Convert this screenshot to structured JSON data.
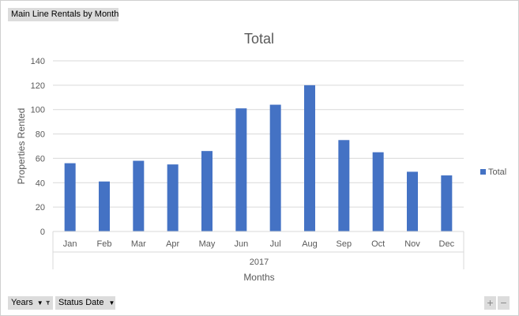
{
  "toolbar": {
    "report_title": "Main Line Rentals by Month",
    "years_field": "Years",
    "status_date_field": "Status Date",
    "zoom_in": "+",
    "zoom_out": "−"
  },
  "colors": {
    "bar": "#4472C4",
    "grid": "#d9d9d9"
  },
  "chart_data": {
    "type": "bar",
    "title": "Total",
    "xlabel": "Months",
    "ylabel": "Properties Rented",
    "group_label": "2017",
    "categories": [
      "Jan",
      "Feb",
      "Mar",
      "Apr",
      "May",
      "Jun",
      "Jul",
      "Aug",
      "Sep",
      "Oct",
      "Nov",
      "Dec"
    ],
    "series": [
      {
        "name": "Total",
        "values": [
          56,
          41,
          58,
          55,
          66,
          101,
          104,
          120,
          75,
          65,
          49,
          46
        ]
      }
    ],
    "ylim": [
      0,
      140
    ],
    "yticks": [
      0,
      20,
      40,
      60,
      80,
      100,
      120,
      140
    ],
    "grid": true,
    "legend": "right"
  }
}
